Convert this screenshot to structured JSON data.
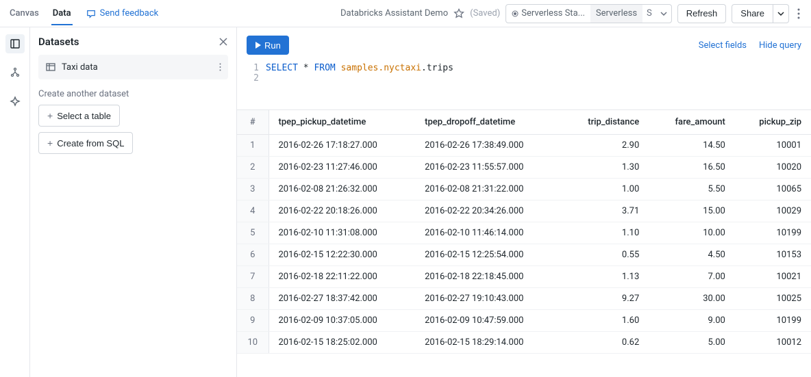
{
  "topbar": {
    "tabs": [
      "Canvas",
      "Data"
    ],
    "active_tab": 1,
    "feedback_label": "Send feedback",
    "title": "Databricks Assistant Demo",
    "saved_label": "(Saved)",
    "compute": {
      "primary": "Serverless Sta...",
      "secondary": "Serverless",
      "suffix": "S"
    },
    "refresh_label": "Refresh",
    "share_label": "Share"
  },
  "panel": {
    "title": "Datasets",
    "dataset": "Taxi data",
    "create_label": "Create another dataset",
    "select_table_label": "Select a table",
    "create_sql_label": "Create from SQL"
  },
  "editor": {
    "run_label": "Run",
    "select_fields_label": "Select fields",
    "hide_query_label": "Hide query",
    "sql": {
      "kw1": "SELECT",
      "star": "*",
      "kw2": "FROM",
      "ns": "samples.nyctaxi",
      "tbl": ".trips"
    }
  },
  "table": {
    "columns": [
      "#",
      "tpep_pickup_datetime",
      "tpep_dropoff_datetime",
      "trip_distance",
      "fare_amount",
      "pickup_zip"
    ],
    "numeric_cols": [
      3,
      4,
      5
    ],
    "rows": [
      [
        "1",
        "2016-02-26 17:18:27.000",
        "2016-02-26 17:38:49.000",
        "2.90",
        "14.50",
        "10001"
      ],
      [
        "2",
        "2016-02-23 11:27:46.000",
        "2016-02-23 11:55:57.000",
        "1.30",
        "16.50",
        "10020"
      ],
      [
        "3",
        "2016-02-08 21:26:32.000",
        "2016-02-08 21:31:22.000",
        "1.00",
        "5.50",
        "10065"
      ],
      [
        "4",
        "2016-02-22 20:18:26.000",
        "2016-02-22 20:34:26.000",
        "3.71",
        "15.00",
        "10029"
      ],
      [
        "5",
        "2016-02-10 11:31:08.000",
        "2016-02-10 11:46:14.000",
        "1.10",
        "10.00",
        "10199"
      ],
      [
        "6",
        "2016-02-15 12:22:30.000",
        "2016-02-15 12:25:54.000",
        "0.55",
        "4.50",
        "10153"
      ],
      [
        "7",
        "2016-02-18 22:11:22.000",
        "2016-02-18 22:18:45.000",
        "1.13",
        "7.00",
        "10021"
      ],
      [
        "8",
        "2016-02-27 18:37:42.000",
        "2016-02-27 19:10:43.000",
        "9.27",
        "30.00",
        "10025"
      ],
      [
        "9",
        "2016-02-09 10:37:05.000",
        "2016-02-09 10:47:59.000",
        "1.60",
        "9.00",
        "10199"
      ],
      [
        "10",
        "2016-02-15 18:25:02.000",
        "2016-02-15 18:29:14.000",
        "0.62",
        "5.00",
        "10012"
      ]
    ]
  }
}
